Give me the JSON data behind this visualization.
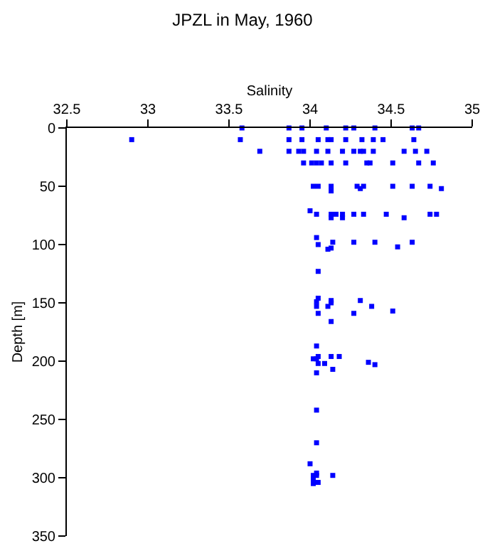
{
  "chart_data": {
    "type": "scatter",
    "title": "JPZL in May, 1960",
    "xlabel": "Salinity",
    "ylabel": "Depth [m]",
    "x": [
      33.58,
      33.87,
      33.95,
      34.1,
      34.22,
      34.27,
      34.4,
      34.63,
      34.67,
      32.9,
      33.57,
      33.87,
      33.95,
      34.05,
      34.11,
      34.13,
      34.22,
      34.32,
      34.39,
      34.45,
      34.64,
      33.69,
      33.87,
      33.93,
      33.96,
      34.04,
      34.11,
      34.2,
      34.27,
      34.31,
      34.33,
      34.39,
      34.58,
      34.65,
      34.72,
      33.96,
      34.01,
      34.04,
      34.07,
      34.13,
      34.22,
      34.35,
      34.37,
      34.51,
      34.67,
      34.76,
      34.02,
      34.05,
      34.13,
      34.29,
      34.33,
      34.51,
      34.63,
      34.74,
      34.81,
      34.13,
      34.31,
      34.0,
      34.04,
      34.13,
      34.16,
      34.2,
      34.27,
      34.33,
      34.47,
      34.74,
      34.78,
      34.13,
      34.2,
      34.58,
      34.04,
      34.14,
      34.27,
      34.4,
      34.63,
      34.05,
      34.54,
      34.13,
      34.11,
      34.05,
      34.05,
      34.13,
      34.31,
      34.04,
      34.13,
      34.04,
      34.11,
      34.38,
      34.51,
      34.05,
      34.27,
      34.13,
      34.04,
      34.05,
      34.13,
      34.18,
      34.02,
      34.04,
      34.05,
      34.09,
      34.36,
      34.4,
      34.14,
      34.04,
      34.04,
      34.04,
      34.0,
      34.04,
      34.02,
      34.04,
      34.14,
      34.02,
      34.05,
      34.02
    ],
    "values": [
      0,
      0,
      0,
      0,
      0,
      0,
      0,
      0,
      0,
      10,
      10,
      10,
      10,
      10,
      10,
      10,
      10,
      10,
      10,
      10,
      10,
      20,
      20,
      20,
      20,
      20,
      20,
      20,
      20,
      20,
      20,
      20,
      20,
      20,
      20,
      30,
      30,
      30,
      30,
      30,
      30,
      30,
      30,
      30,
      30,
      30,
      50,
      50,
      50,
      50,
      50,
      50,
      50,
      50,
      52,
      54,
      52,
      71,
      74,
      74,
      74,
      74,
      74,
      74,
      74,
      74,
      74,
      77,
      77,
      77,
      94,
      98,
      98,
      98,
      98,
      100,
      102,
      103,
      104,
      123,
      146,
      148,
      148,
      149,
      150,
      153,
      153,
      153,
      157,
      159,
      159,
      166,
      187,
      196,
      196,
      196,
      198,
      198,
      202,
      202,
      201,
      203,
      207,
      210,
      242,
      270,
      288,
      296,
      298,
      298,
      298,
      301,
      304,
      305
    ],
    "color": "#0000ff",
    "marker": "square",
    "xlim": [
      32.5,
      35
    ],
    "xticks": [
      32.5,
      33,
      33.5,
      34,
      34.5,
      35
    ],
    "ylim": [
      350,
      0
    ],
    "yticks": [
      0,
      50,
      100,
      150,
      200,
      250,
      300,
      350
    ],
    "grid": false,
    "legend": false
  }
}
